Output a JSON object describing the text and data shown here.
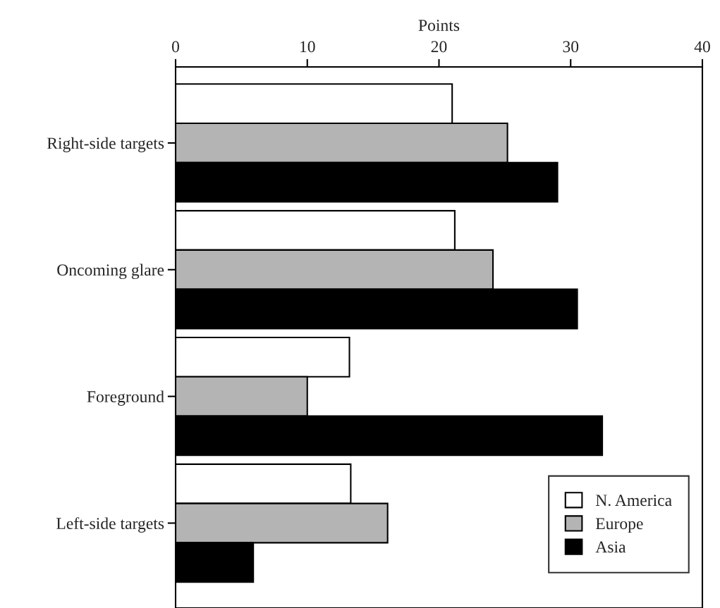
{
  "chart_data": {
    "type": "bar",
    "orientation": "horizontal",
    "xlabel": "Points",
    "categories": [
      "Right-side targets",
      "Oncoming glare",
      "Foreground",
      "Left-side targets"
    ],
    "series": [
      {
        "name": "N. America",
        "color": "#ffffff",
        "values": [
          21.0,
          21.2,
          13.2,
          13.3
        ]
      },
      {
        "name": "Europe",
        "color": "#b4b4b4",
        "values": [
          25.2,
          24.1,
          10.0,
          16.1
        ]
      },
      {
        "name": "Asia",
        "color": "#000000",
        "values": [
          29.0,
          30.5,
          32.4,
          5.9
        ]
      }
    ],
    "xlim": [
      0,
      40
    ],
    "xticks": [
      0,
      10,
      20,
      30,
      40
    ],
    "grid": false,
    "legend": "bottom right"
  }
}
